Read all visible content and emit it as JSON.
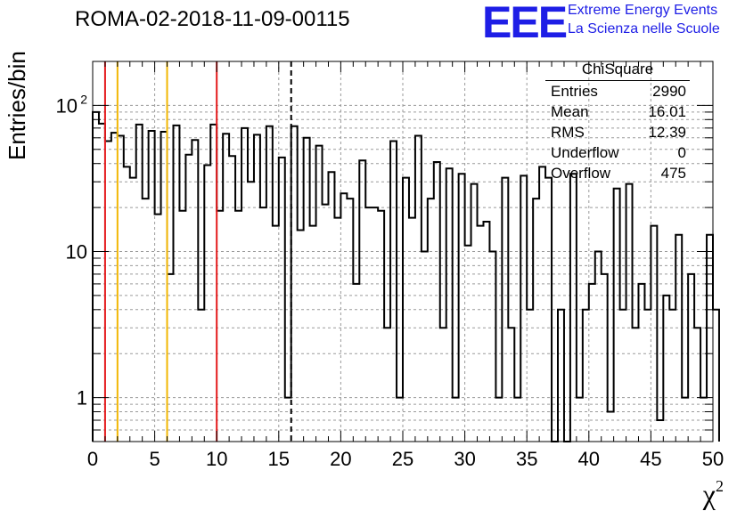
{
  "header": {
    "title": "ROMA-02-2018-11-09-00115"
  },
  "logo": {
    "mark": "EEE",
    "line1": "Extreme Energy Events",
    "line2": "La Scienza nelle Scuole",
    "color": "#1e1ee6"
  },
  "stats": {
    "title": "ChiSquare",
    "rows": [
      {
        "label": "Entries",
        "value": "2990"
      },
      {
        "label": "Mean",
        "value": "16.01"
      },
      {
        "label": "RMS",
        "value": "12.39"
      },
      {
        "label": "Underflow",
        "value": "0"
      },
      {
        "label": "Overflow",
        "value": "475"
      }
    ]
  },
  "chart_data": {
    "type": "bar",
    "histogram": true,
    "title": "ROMA-02-2018-11-09-00115",
    "xlabel": "χ",
    "xlabel_superscript": "2",
    "ylabel": "Entries/bin",
    "xlim": [
      0,
      50
    ],
    "ylim": [
      0.5,
      200
    ],
    "yscale": "log",
    "grid": true,
    "grid_style": "dashed",
    "x_ticks": [
      "0",
      "5",
      "10",
      "15",
      "20",
      "25",
      "30",
      "35",
      "40",
      "45",
      "50"
    ],
    "y_ticks": [
      {
        "value": 1,
        "label": "1"
      },
      {
        "value": 10,
        "label": "10"
      },
      {
        "value": 100,
        "label": "10",
        "exponent": "2"
      }
    ],
    "bin_width": 0.5,
    "values": [
      90,
      75,
      57,
      65,
      62,
      38,
      32,
      74,
      23,
      67,
      18,
      66,
      7,
      73,
      19,
      46,
      58,
      4,
      39,
      74,
      19,
      64,
      45,
      19,
      70,
      30,
      63,
      20,
      72,
      15,
      44,
      1,
      72,
      14,
      60,
      15,
      53,
      21,
      35,
      17,
      25,
      23,
      6,
      42,
      20,
      20,
      19,
      3,
      57,
      1,
      32,
      17,
      62,
      10,
      23,
      41,
      3,
      37,
      1,
      34,
      11,
      29,
      15,
      16,
      10,
      1,
      32,
      3,
      1,
      33,
      4,
      23,
      38,
      32,
      0.3,
      4,
      0.3,
      34,
      1,
      4,
      6,
      10,
      7,
      0.8,
      27,
      4,
      29,
      3,
      6,
      4,
      15,
      0.7,
      5,
      4,
      13,
      1,
      7,
      3,
      1,
      13,
      4
    ],
    "reference_lines": [
      {
        "x": 1,
        "color": "#e41a1c",
        "style": "solid"
      },
      {
        "x": 2,
        "color": "#f2b705",
        "style": "solid"
      },
      {
        "x": 6,
        "color": "#f2b705",
        "style": "solid"
      },
      {
        "x": 10,
        "color": "#e41a1c",
        "style": "solid"
      },
      {
        "x": 16,
        "color": "#000000",
        "style": "dashed"
      }
    ]
  }
}
